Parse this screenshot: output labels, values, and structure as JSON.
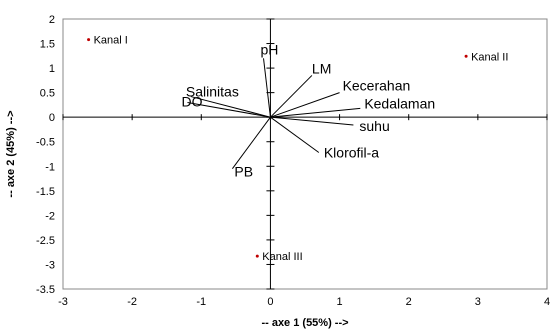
{
  "chart_data": {
    "type": "scatter",
    "title": "",
    "xlabel": "-- axe 1 (55%) -->",
    "ylabel": "-- axe 2 (45%) -->",
    "xlim": [
      -3,
      4
    ],
    "ylim": [
      -3.5,
      2
    ],
    "xticks": [
      "-3",
      "-2",
      "-1",
      "0",
      "1",
      "2",
      "3",
      "4"
    ],
    "yticks": [
      "2",
      "1.5",
      "1",
      "0.5",
      "0",
      "-0.5",
      "-1",
      "-1.5",
      "-2",
      "-2.5",
      "-3",
      "-3.5"
    ],
    "grid": false,
    "points": [
      {
        "label": "Kanal I",
        "x": -2.63,
        "y": 1.58
      },
      {
        "label": "Kanal II",
        "x": 2.83,
        "y": 1.24
      },
      {
        "label": "Kanal III",
        "x": -0.19,
        "y": -2.83
      }
    ],
    "vectors": [
      {
        "label": "pH",
        "x": -0.1,
        "y": 1.2
      },
      {
        "label": "LM",
        "x": 0.6,
        "y": 0.85
      },
      {
        "label": "Kecerahan",
        "x": 1.0,
        "y": 0.5
      },
      {
        "label": "Kedalaman",
        "x": 1.3,
        "y": 0.18
      },
      {
        "label": "suhu",
        "x": 1.2,
        "y": -0.16
      },
      {
        "label": "Klorofil-a",
        "x": 0.7,
        "y": -0.72
      },
      {
        "label": "PB",
        "x": -0.55,
        "y": -1.05
      },
      {
        "label": "Salinitas",
        "x": -1.15,
        "y": 0.42
      },
      {
        "label": "DO",
        "x": -1.2,
        "y": 0.3
      }
    ],
    "colors": {
      "point": "#c00000",
      "vector": "#000000",
      "axis": "#000000"
    }
  }
}
